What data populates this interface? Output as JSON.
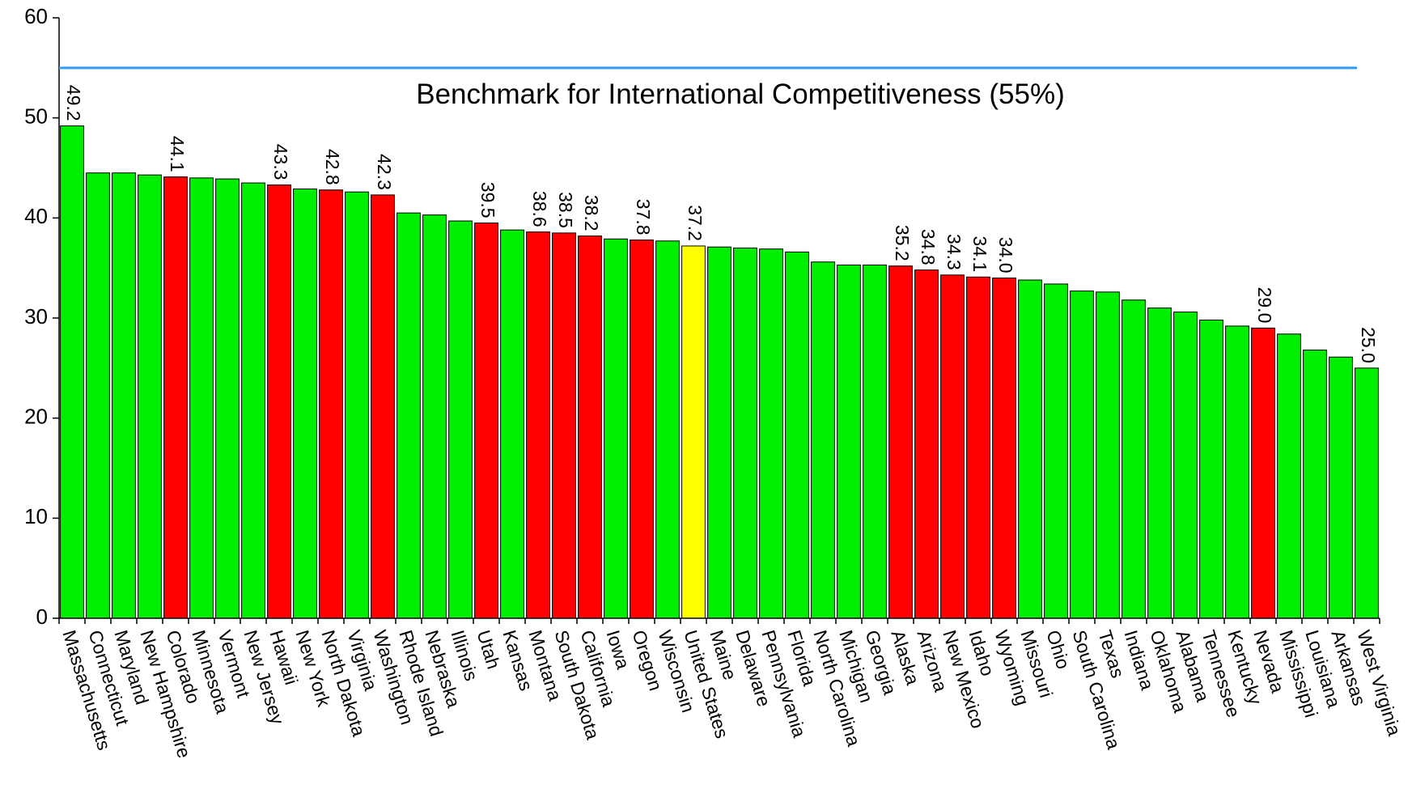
{
  "chart_data": {
    "type": "bar",
    "categories": [
      "Massachusetts",
      "Connecticut",
      "Maryland",
      "New Hampshire",
      "Colorado",
      "Minnesota",
      "Vermont",
      "New Jersey",
      "Hawaii",
      "New York",
      "North Dakota",
      "Virginia",
      "Washington",
      "Rhode Island",
      "Nebraska",
      "Illinois",
      "Utah",
      "Kansas",
      "Montana",
      "South Dakota",
      "California",
      "Iowa",
      "Oregon",
      "Wisconsin",
      "United States",
      "Maine",
      "Delaware",
      "Pennsylvania",
      "Florida",
      "North Carolina",
      "Michigan",
      "Georgia",
      "Alaska",
      "Arizona",
      "New Mexico",
      "Idaho",
      "Wyoming",
      "Missouri",
      "Ohio",
      "South Carolina",
      "Texas",
      "Indiana",
      "Oklahoma",
      "Alabama",
      "Tennessee",
      "Kentucky",
      "Nevada",
      "Mississippi",
      "Louisiana",
      "Arkansas",
      "West Virginia"
    ],
    "values": [
      49.2,
      44.5,
      44.5,
      44.3,
      44.1,
      44.0,
      43.9,
      43.5,
      43.3,
      42.9,
      42.8,
      42.6,
      42.3,
      40.5,
      40.3,
      39.7,
      39.5,
      38.8,
      38.6,
      38.5,
      38.2,
      37.9,
      37.8,
      37.7,
      37.2,
      37.1,
      37.0,
      36.9,
      36.6,
      35.6,
      35.3,
      35.3,
      35.2,
      34.8,
      34.3,
      34.1,
      34.0,
      33.8,
      33.4,
      32.7,
      32.6,
      31.8,
      31.0,
      30.6,
      29.8,
      29.2,
      29.0,
      28.4,
      26.8,
      26.1,
      25.0
    ],
    "value_labels": [
      "49.2",
      null,
      null,
      null,
      "44.1",
      null,
      null,
      null,
      "43.3",
      null,
      "42.8",
      null,
      "42.3",
      null,
      null,
      null,
      "39.5",
      null,
      "38.6",
      "38.5",
      "38.2",
      null,
      "37.8",
      null,
      "37.2",
      null,
      null,
      null,
      null,
      null,
      null,
      null,
      "35.2",
      "34.8",
      "34.3",
      "34.1",
      "34.0",
      null,
      null,
      null,
      null,
      null,
      null,
      null,
      null,
      null,
      "29.0",
      null,
      null,
      null,
      "25.0"
    ],
    "colors": [
      "#00ee00",
      "#00ee00",
      "#00ee00",
      "#00ee00",
      "#ff0000",
      "#00ee00",
      "#00ee00",
      "#00ee00",
      "#ff0000",
      "#00ee00",
      "#ff0000",
      "#00ee00",
      "#ff0000",
      "#00ee00",
      "#00ee00",
      "#00ee00",
      "#ff0000",
      "#00ee00",
      "#ff0000",
      "#ff0000",
      "#ff0000",
      "#00ee00",
      "#ff0000",
      "#00ee00",
      "#ffff00",
      "#00ee00",
      "#00ee00",
      "#00ee00",
      "#00ee00",
      "#00ee00",
      "#00ee00",
      "#00ee00",
      "#ff0000",
      "#ff0000",
      "#ff0000",
      "#ff0000",
      "#ff0000",
      "#00ee00",
      "#00ee00",
      "#00ee00",
      "#00ee00",
      "#00ee00",
      "#00ee00",
      "#00ee00",
      "#00ee00",
      "#00ee00",
      "#ff0000",
      "#00ee00",
      "#00ee00",
      "#00ee00",
      "#00ee00"
    ],
    "ylim": [
      0,
      60
    ],
    "yticks": [
      0,
      10,
      20,
      30,
      40,
      50,
      60
    ],
    "grid": false,
    "benchmark": {
      "value": 55,
      "label": "Benchmark for International Competitiveness (55%)",
      "color": "#3399ff"
    }
  }
}
